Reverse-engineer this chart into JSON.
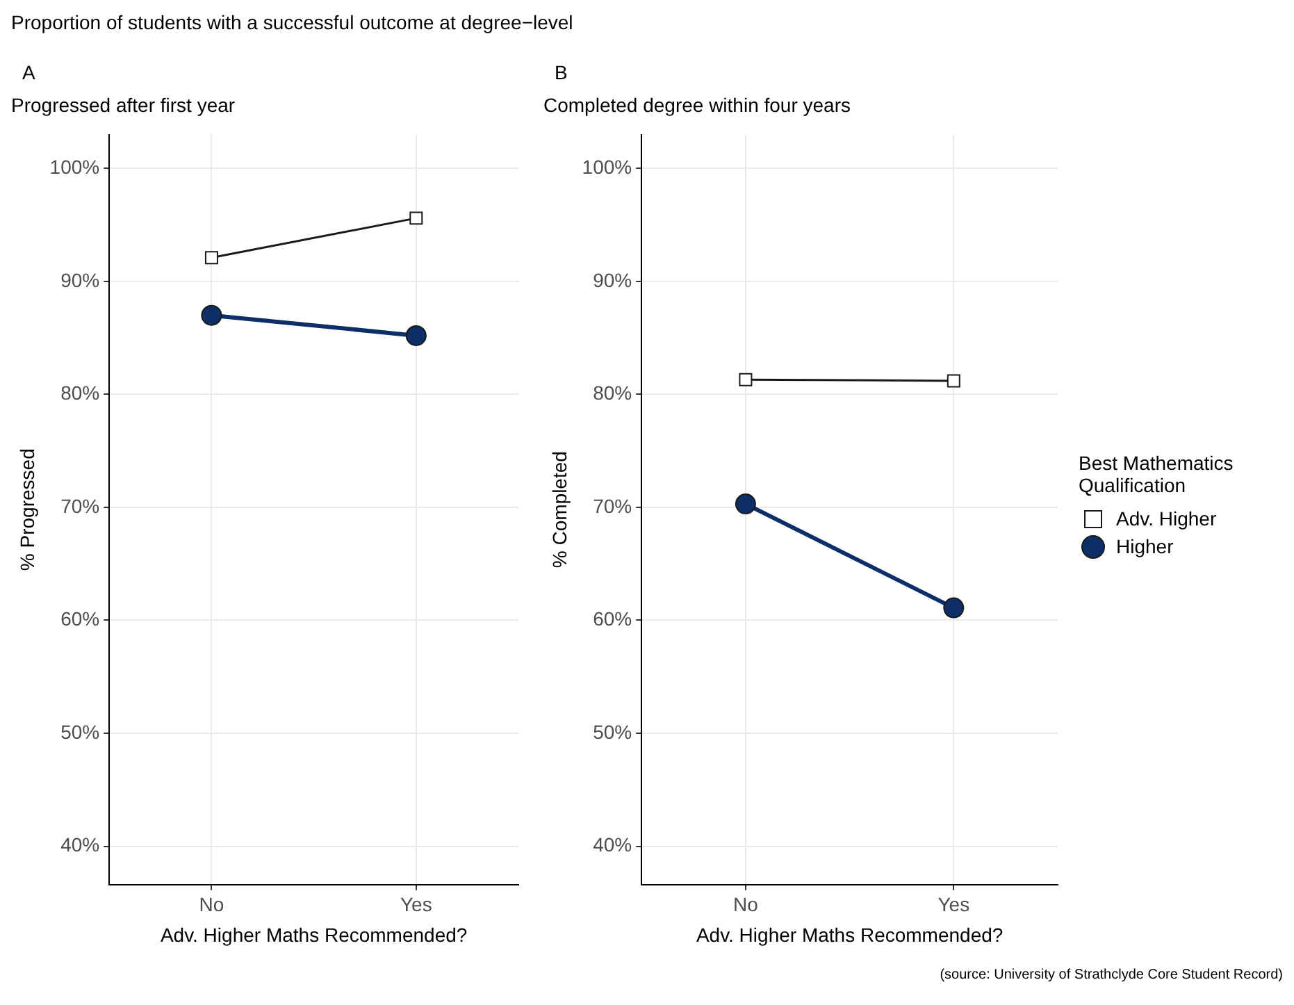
{
  "chart_data": [
    {
      "type": "line",
      "title": "Progressed after first year",
      "annotations": [
        "A",
        "Proportion of students with a successful outcome at degree−level"
      ],
      "xlabel": "Adv. Higher Maths Recommended?",
      "ylabel": "% Progressed",
      "categories": [
        "No",
        "Yes"
      ],
      "series": [
        {
          "color": "#ffffff",
          "marker": "square",
          "values": [
            92.1,
            95.6
          ]
        },
        {
          "color": "#0b2f66",
          "marker": "circle",
          "values": [
            87.0,
            85.2
          ]
        }
      ],
      "ylim": [
        36.6,
        103
      ],
      "yticks": [
        {
          "value": 40,
          "label": "40%"
        },
        {
          "value": 50,
          "label": "50%"
        },
        {
          "value": 60,
          "label": "60%"
        },
        {
          "value": 70,
          "label": "70%"
        },
        {
          "value": 80,
          "label": "80%"
        },
        {
          "value": 90,
          "label": "90%"
        },
        {
          "value": 100,
          "label": "100%"
        }
      ],
      "grid": true,
      "legend": false
    },
    {
      "type": "line",
      "title": "Completed degree within four years",
      "annotations": [
        "B",
        "(source: University of Strathclyde Core Student Record)"
      ],
      "xlabel": "Adv. Higher Maths Recommended?",
      "ylabel": "% Completed",
      "legend_title": "Best Mathematics Qualification",
      "categories": [
        "No",
        "Yes"
      ],
      "series": [
        {
          "name": "Adv. Higher",
          "color": "#ffffff",
          "marker": "square",
          "values": [
            81.3,
            81.2
          ]
        },
        {
          "name": "Higher",
          "color": "#0b2f66",
          "marker": "circle",
          "values": [
            70.3,
            61.1
          ]
        }
      ],
      "ylim": [
        36.6,
        103
      ],
      "yticks": [
        {
          "value": 40,
          "label": "40%"
        },
        {
          "value": 50,
          "label": "50%"
        },
        {
          "value": 60,
          "label": "60%"
        },
        {
          "value": 70,
          "label": "70%"
        },
        {
          "value": 80,
          "label": "80%"
        },
        {
          "value": 90,
          "label": "90%"
        },
        {
          "value": 100,
          "label": "100%"
        }
      ],
      "grid": true,
      "legend": "right"
    }
  ]
}
